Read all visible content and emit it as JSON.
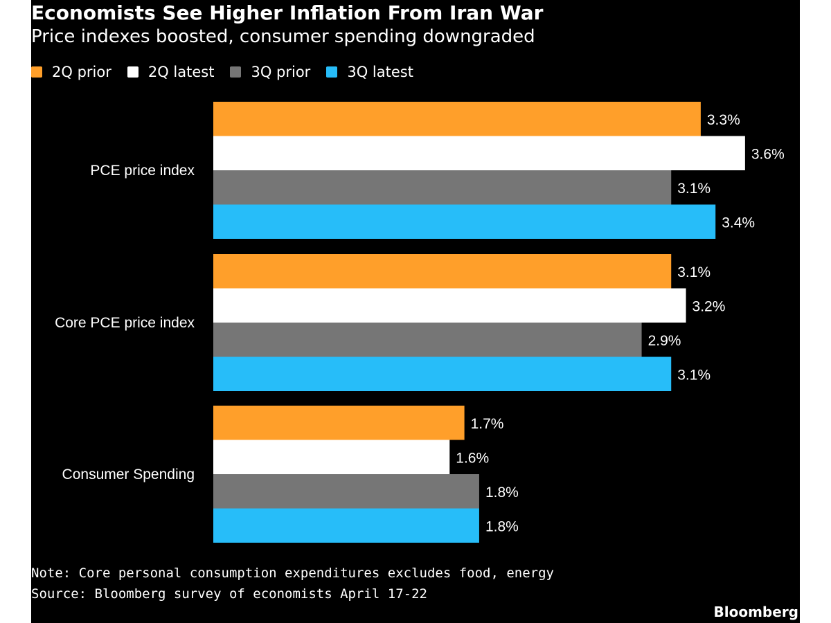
{
  "title": "Economists See Higher Inflation From Iran War",
  "subtitle": "Price indexes boosted, consumer spending downgraded",
  "note": "Note: Core personal consumption expenditures excludes food, energy",
  "source": "Source: Bloomberg survey of economists April 17-22",
  "brand": "Bloomberg",
  "colors": {
    "background": "#000000",
    "text": "#ffffff",
    "2q_prior": "#ff9f2a",
    "2q_latest": "#ffffff",
    "3q_prior": "#767676",
    "3q_latest": "#27bdf9"
  },
  "chart_data": {
    "type": "bar",
    "orientation": "horizontal",
    "title": "Economists See Higher Inflation From Iran War",
    "subtitle": "Price indexes boosted, consumer spending downgraded",
    "xlabel": "",
    "ylabel": "",
    "xlim": [
      0,
      3.6
    ],
    "grid": false,
    "legend_position": "top-left",
    "value_suffix": "%",
    "categories": [
      "PCE price index",
      "Core PCE price index",
      "Consumer Spending"
    ],
    "series": [
      {
        "name": "2Q prior",
        "color": "#ff9f2a",
        "values": [
          3.3,
          3.1,
          1.7
        ]
      },
      {
        "name": "2Q latest",
        "color": "#ffffff",
        "values": [
          3.6,
          3.2,
          1.6
        ]
      },
      {
        "name": "3Q prior",
        "color": "#767676",
        "values": [
          3.1,
          2.9,
          1.8
        ]
      },
      {
        "name": "3Q latest",
        "color": "#27bdf9",
        "values": [
          3.4,
          3.1,
          1.8
        ]
      }
    ]
  }
}
